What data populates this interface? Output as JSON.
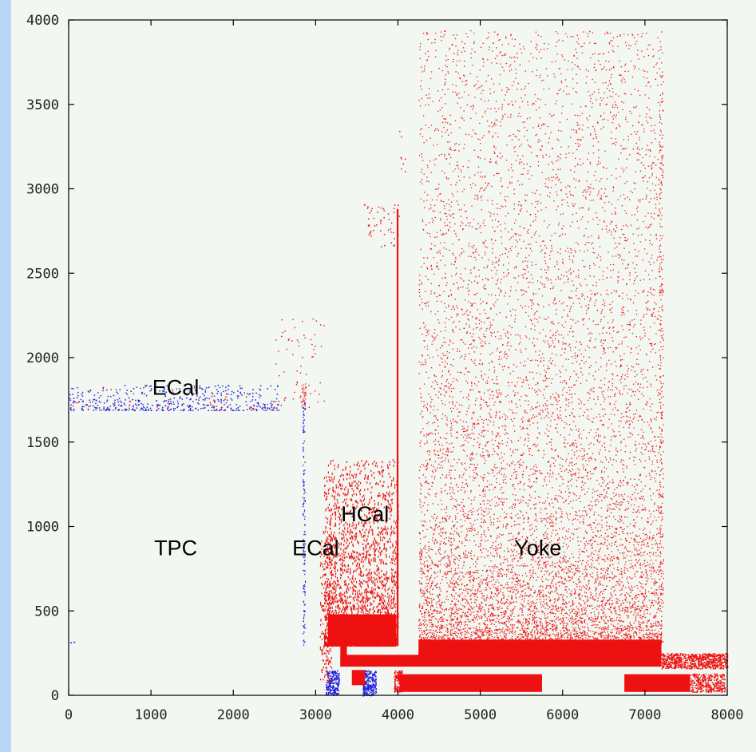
{
  "chart_data": {
    "type": "scatter",
    "title": "",
    "xlabel": "",
    "ylabel": "",
    "xlim": [
      0,
      8000
    ],
    "ylim": [
      0,
      4000
    ],
    "x_ticks": [
      "0",
      "1000",
      "2000",
      "3000",
      "4000",
      "5000",
      "6000",
      "7000",
      "8000"
    ],
    "y_ticks": [
      "0",
      "500",
      "1000",
      "1500",
      "2000",
      "2500",
      "3000",
      "3500",
      "4000"
    ],
    "grid": false,
    "series": [
      {
        "color": "#2222dd"
      },
      {
        "color": "#ee1111"
      }
    ],
    "annotations": [
      {
        "text": "ECal",
        "x": 1300,
        "y": 1780
      },
      {
        "text": "TPC",
        "x": 1300,
        "y": 830
      },
      {
        "text": "ECal",
        "x": 3000,
        "y": 830
      },
      {
        "text": "HCal",
        "x": 3600,
        "y": 1030
      },
      {
        "text": "Yoke",
        "x": 5700,
        "y": 830
      }
    ]
  }
}
